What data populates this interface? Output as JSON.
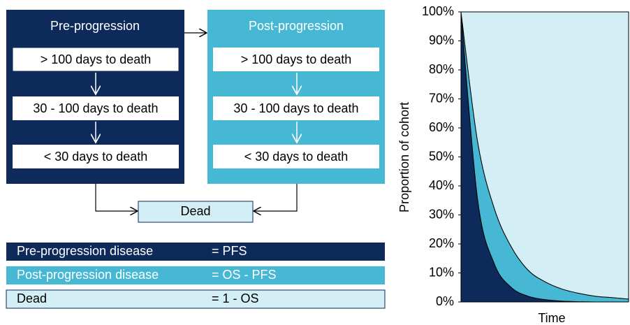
{
  "diagram": {
    "pre": {
      "title": "Pre-progression",
      "states": [
        "> 100 days to death",
        "30 - 100 days to death",
        "< 30 days to death"
      ]
    },
    "post": {
      "title": "Post-progression",
      "states": [
        "> 100 days to death",
        "30 - 100 days to death",
        "< 30 days to death"
      ]
    },
    "dead": "Dead"
  },
  "legend": [
    {
      "state": "Pre-progression disease",
      "formula": "= PFS"
    },
    {
      "state": "Post-progression disease",
      "formula": "= OS - PFS"
    },
    {
      "state": "Dead",
      "formula": "= 1 - OS"
    }
  ],
  "chart_data": {
    "type": "stacked_area",
    "x_label": "Time",
    "y_label": "Proportion of cohort",
    "categories": [
      null,
      null,
      null,
      null,
      null,
      null,
      null,
      null,
      null,
      null,
      null
    ],
    "series": [
      {
        "color": "#0d2a5a",
        "values": [
          100,
          35,
          13,
          5,
          2,
          0.8,
          0.3,
          0.1,
          0,
          0,
          0
        ]
      },
      {
        "color": "#46b8d3",
        "values": [
          0,
          20,
          19,
          14,
          9,
          6.2,
          4.2,
          2.9,
          2,
          1.5,
          1
        ]
      },
      {
        "color": "#d3eef5",
        "values": [
          0,
          45,
          68,
          81,
          89,
          93,
          95.5,
          97,
          98,
          98.5,
          99
        ]
      }
    ],
    "ylim": [
      0,
      100
    ],
    "yticks": [
      {
        "value": 0,
        "label": "0%"
      },
      {
        "value": 10,
        "label": "10%"
      },
      {
        "value": 20,
        "label": "20%"
      },
      {
        "value": 30,
        "label": "30%"
      },
      {
        "value": 40,
        "label": "40%"
      },
      {
        "value": 50,
        "label": "50%"
      },
      {
        "value": 60,
        "label": "60%"
      },
      {
        "value": 70,
        "label": "70%"
      },
      {
        "value": 80,
        "label": "80%"
      },
      {
        "value": 90,
        "label": "90%"
      },
      {
        "value": 100,
        "label": "100%"
      }
    ]
  }
}
